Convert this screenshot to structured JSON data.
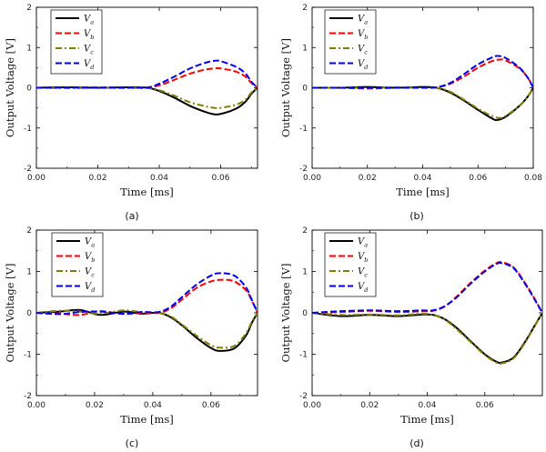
{
  "chart_data": [
    {
      "type": "line",
      "caption": "(a)",
      "xlabel": "Time [ms]",
      "ylabel": "Output Voltage [V]",
      "xlim": [
        0,
        0.072
      ],
      "ylim": [
        -2,
        2
      ],
      "xticks": [
        0.0,
        0.02,
        0.04,
        0.06
      ],
      "xtick_labels": [
        "0.00",
        "0.02",
        "0.04",
        "0.06"
      ],
      "yticks": [
        -2,
        -1,
        0,
        1,
        2
      ],
      "ytick_labels": [
        "-2",
        "-1",
        "0",
        "1",
        "2"
      ],
      "series": [
        {
          "name": "V",
          "sub": "a",
          "color": "#000000",
          "style": "solid",
          "x": [
            0,
            0.01,
            0.02,
            0.03,
            0.036,
            0.04,
            0.045,
            0.05,
            0.055,
            0.058,
            0.06,
            0.065,
            0.068,
            0.07,
            0.072
          ],
          "y": [
            0,
            0.01,
            0,
            0.01,
            0,
            -0.08,
            -0.25,
            -0.45,
            -0.6,
            -0.66,
            -0.65,
            -0.52,
            -0.35,
            -0.15,
            0
          ]
        },
        {
          "name": "V",
          "sub": "b",
          "color": "#ff0000",
          "style": "dash",
          "x": [
            0,
            0.01,
            0.02,
            0.03,
            0.036,
            0.04,
            0.045,
            0.05,
            0.055,
            0.058,
            0.06,
            0.065,
            0.068,
            0.07,
            0.072
          ],
          "y": [
            0,
            0,
            0.01,
            0,
            0.01,
            0.06,
            0.2,
            0.35,
            0.45,
            0.48,
            0.48,
            0.4,
            0.28,
            0.12,
            0
          ]
        },
        {
          "name": "V",
          "sub": "c",
          "color": "#808000",
          "style": "dashdot",
          "x": [
            0,
            0.01,
            0.02,
            0.03,
            0.036,
            0.04,
            0.045,
            0.05,
            0.055,
            0.058,
            0.06,
            0.065,
            0.068,
            0.07,
            0.072
          ],
          "y": [
            0,
            -0.01,
            0,
            -0.01,
            0,
            -0.06,
            -0.2,
            -0.36,
            -0.46,
            -0.5,
            -0.5,
            -0.42,
            -0.3,
            -0.12,
            0
          ]
        },
        {
          "name": "V",
          "sub": "d",
          "color": "#0000ee",
          "style": "dash",
          "x": [
            0,
            0.01,
            0.02,
            0.03,
            0.036,
            0.04,
            0.045,
            0.05,
            0.055,
            0.058,
            0.06,
            0.065,
            0.068,
            0.07,
            0.072
          ],
          "y": [
            0,
            0.01,
            0,
            0.01,
            0,
            0.1,
            0.28,
            0.48,
            0.62,
            0.67,
            0.66,
            0.52,
            0.36,
            0.15,
            0
          ]
        }
      ]
    },
    {
      "type": "line",
      "caption": "(b)",
      "xlabel": "Time [ms]",
      "ylabel": "Output Voltage [V]",
      "xlim": [
        0,
        0.08
      ],
      "ylim": [
        -2,
        2
      ],
      "xticks": [
        0.0,
        0.02,
        0.04,
        0.06,
        0.08
      ],
      "xtick_labels": [
        "0.00",
        "0.02",
        "0.04",
        "0.06",
        "0.08"
      ],
      "yticks": [
        -2,
        -1,
        0,
        1,
        2
      ],
      "ytick_labels": [
        "-2",
        "-1",
        "0",
        "1",
        "2"
      ],
      "series": [
        {
          "name": "V",
          "sub": "a",
          "color": "#000000",
          "style": "solid",
          "x": [
            0,
            0.01,
            0.02,
            0.03,
            0.04,
            0.045,
            0.05,
            0.055,
            0.06,
            0.065,
            0.067,
            0.07,
            0.075,
            0.078,
            0.08
          ],
          "y": [
            0,
            0,
            0.02,
            0,
            0.02,
            0,
            -0.12,
            -0.32,
            -0.55,
            -0.76,
            -0.8,
            -0.72,
            -0.45,
            -0.22,
            0
          ]
        },
        {
          "name": "V",
          "sub": "b",
          "color": "#ff0000",
          "style": "dash",
          "x": [
            0,
            0.01,
            0.02,
            0.03,
            0.04,
            0.045,
            0.05,
            0.055,
            0.06,
            0.065,
            0.068,
            0.07,
            0.075,
            0.078,
            0.08
          ],
          "y": [
            0,
            0,
            -0.02,
            0,
            0,
            0.01,
            0.1,
            0.28,
            0.5,
            0.66,
            0.7,
            0.68,
            0.48,
            0.25,
            0
          ]
        },
        {
          "name": "V",
          "sub": "c",
          "color": "#808000",
          "style": "dashdot",
          "x": [
            0,
            0.01,
            0.02,
            0.03,
            0.04,
            0.045,
            0.05,
            0.055,
            0.06,
            0.065,
            0.068,
            0.07,
            0.075,
            0.078,
            0.08
          ],
          "y": [
            0,
            0,
            0,
            0.01,
            0,
            0,
            -0.1,
            -0.3,
            -0.52,
            -0.7,
            -0.75,
            -0.7,
            -0.45,
            -0.22,
            0
          ]
        },
        {
          "name": "V",
          "sub": "d",
          "color": "#0000ee",
          "style": "dash",
          "x": [
            0,
            0.01,
            0.02,
            0.03,
            0.04,
            0.045,
            0.05,
            0.055,
            0.06,
            0.065,
            0.067,
            0.07,
            0.075,
            0.078,
            0.08
          ],
          "y": [
            0,
            0,
            0,
            0,
            0,
            0.01,
            0.12,
            0.34,
            0.58,
            0.75,
            0.79,
            0.74,
            0.5,
            0.25,
            0
          ]
        }
      ]
    },
    {
      "type": "line",
      "caption": "(c)",
      "xlabel": "Time [ms]",
      "ylabel": "Output Voltage [V]",
      "xlim": [
        0,
        0.076
      ],
      "ylim": [
        -2,
        2
      ],
      "xticks": [
        0.0,
        0.02,
        0.04,
        0.06
      ],
      "xtick_labels": [
        "0.00",
        "0.02",
        "0.04",
        "0.06"
      ],
      "yticks": [
        -2,
        -1,
        0,
        1,
        2
      ],
      "ytick_labels": [
        "-2",
        "-1",
        "0",
        "1",
        "2"
      ],
      "series": [
        {
          "name": "V",
          "sub": "a",
          "color": "#000000",
          "style": "solid",
          "x": [
            0,
            0.008,
            0.015,
            0.022,
            0.03,
            0.036,
            0.042,
            0.046,
            0.05,
            0.055,
            0.06,
            0.063,
            0.068,
            0.072,
            0.074,
            0.076
          ],
          "y": [
            0,
            0.03,
            0.07,
            -0.05,
            0.03,
            -0.02,
            0,
            -0.1,
            -0.3,
            -0.6,
            -0.85,
            -0.92,
            -0.86,
            -0.55,
            -0.25,
            0
          ]
        },
        {
          "name": "V",
          "sub": "b",
          "color": "#ff0000",
          "style": "dash",
          "x": [
            0,
            0.008,
            0.015,
            0.022,
            0.03,
            0.036,
            0.042,
            0.046,
            0.05,
            0.055,
            0.06,
            0.064,
            0.068,
            0.072,
            0.074,
            0.076
          ],
          "y": [
            0,
            -0.02,
            -0.05,
            0.04,
            -0.03,
            0,
            0,
            0.1,
            0.32,
            0.6,
            0.76,
            0.8,
            0.76,
            0.55,
            0.3,
            0
          ]
        },
        {
          "name": "V",
          "sub": "c",
          "color": "#808000",
          "style": "dashdot",
          "x": [
            0,
            0.008,
            0.015,
            0.022,
            0.03,
            0.036,
            0.042,
            0.046,
            0.05,
            0.055,
            0.06,
            0.063,
            0.068,
            0.072,
            0.074,
            0.076
          ],
          "y": [
            0,
            0.05,
            0.03,
            -0.02,
            0.06,
            0.02,
            0,
            -0.08,
            -0.28,
            -0.55,
            -0.78,
            -0.84,
            -0.8,
            -0.5,
            -0.22,
            0
          ]
        },
        {
          "name": "V",
          "sub": "d",
          "color": "#0000ee",
          "style": "dash",
          "x": [
            0,
            0.008,
            0.015,
            0.022,
            0.03,
            0.036,
            0.042,
            0.046,
            0.05,
            0.055,
            0.06,
            0.063,
            0.068,
            0.072,
            0.074,
            0.076
          ],
          "y": [
            0,
            -0.03,
            0.02,
            0.03,
            -0.02,
            0.02,
            0.02,
            0.14,
            0.38,
            0.68,
            0.9,
            0.96,
            0.9,
            0.62,
            0.32,
            0
          ]
        }
      ]
    },
    {
      "type": "line",
      "caption": "(d)",
      "xlabel": "Time [ms]",
      "ylabel": "Output Voltage [V]",
      "xlim": [
        0,
        0.08
      ],
      "ylim": [
        -2,
        2
      ],
      "xticks": [
        0.0,
        0.02,
        0.04,
        0.06
      ],
      "xtick_labels": [
        "0.00",
        "0.02",
        "0.04",
        "0.06"
      ],
      "yticks": [
        -2,
        -1,
        0,
        1,
        2
      ],
      "ytick_labels": [
        "-2",
        "-1",
        "0",
        "1",
        "2"
      ],
      "series": [
        {
          "name": "V",
          "sub": "a",
          "color": "#000000",
          "style": "solid",
          "x": [
            0,
            0.01,
            0.02,
            0.03,
            0.038,
            0.042,
            0.046,
            0.05,
            0.055,
            0.06,
            0.064,
            0.066,
            0.07,
            0.074,
            0.077,
            0.08
          ],
          "y": [
            0,
            -0.08,
            -0.05,
            -0.08,
            -0.04,
            -0.05,
            -0.15,
            -0.35,
            -0.68,
            -1.0,
            -1.18,
            -1.2,
            -1.08,
            -0.7,
            -0.35,
            0
          ]
        },
        {
          "name": "V",
          "sub": "b",
          "color": "#ff0000",
          "style": "dash",
          "x": [
            0,
            0.01,
            0.02,
            0.03,
            0.038,
            0.042,
            0.046,
            0.05,
            0.055,
            0.06,
            0.064,
            0.066,
            0.07,
            0.074,
            0.077,
            0.08
          ],
          "y": [
            0,
            0.02,
            0.05,
            0.02,
            0.04,
            0.05,
            0.15,
            0.38,
            0.72,
            1.02,
            1.2,
            1.22,
            1.1,
            0.72,
            0.38,
            0
          ]
        },
        {
          "name": "V",
          "sub": "c",
          "color": "#808000",
          "style": "dashdot",
          "x": [
            0,
            0.01,
            0.02,
            0.03,
            0.038,
            0.042,
            0.046,
            0.05,
            0.055,
            0.06,
            0.064,
            0.066,
            0.07,
            0.074,
            0.077,
            0.08
          ],
          "y": [
            0,
            -0.05,
            -0.04,
            -0.06,
            -0.02,
            -0.05,
            -0.16,
            -0.38,
            -0.7,
            -1.02,
            -1.2,
            -1.22,
            -1.1,
            -0.72,
            -0.36,
            0
          ]
        },
        {
          "name": "V",
          "sub": "d",
          "color": "#0000ee",
          "style": "dash",
          "x": [
            0,
            0.01,
            0.02,
            0.03,
            0.038,
            0.042,
            0.046,
            0.05,
            0.055,
            0.06,
            0.064,
            0.066,
            0.07,
            0.074,
            0.077,
            0.08
          ],
          "y": [
            0,
            0.04,
            0.06,
            0.04,
            0.06,
            0.06,
            0.16,
            0.36,
            0.7,
            1.0,
            1.18,
            1.2,
            1.08,
            0.7,
            0.36,
            0
          ]
        }
      ]
    }
  ]
}
